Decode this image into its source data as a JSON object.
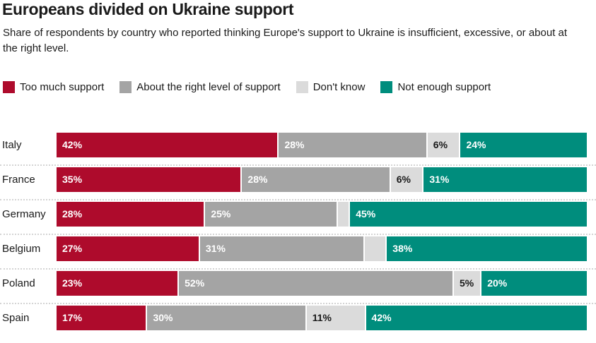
{
  "header": {
    "title": "Europeans divided on Ukraine support",
    "subtitle": "Share of respondents by country who reported thinking Europe's support to Ukraine is insufficient, excessive, or about at the right level."
  },
  "colors": {
    "too_much": "#AE0B2C",
    "right_level": "#A4A4A4",
    "dont_know": "#DBDBDB",
    "not_enough": "#008D7D",
    "label_on_dark": "#FFFFFF",
    "label_on_light": "#1A1A1A",
    "separator": "#D4D4D4"
  },
  "legend": [
    {
      "label": "Too much support",
      "color": "#AE0B2C"
    },
    {
      "label": "About the right level of support",
      "color": "#A4A4A4"
    },
    {
      "label": "Don't know",
      "color": "#DBDBDB"
    },
    {
      "label": "Not enough support",
      "color": "#008D7D"
    }
  ],
  "chart_data": {
    "type": "bar",
    "orientation": "horizontal-stacked",
    "title": "Europeans divided on Ukraine support",
    "xlabel": "",
    "ylabel": "",
    "xlim": [
      0,
      100
    ],
    "value_unit": "%",
    "grid": false,
    "legend_position": "top",
    "categories": [
      "Italy",
      "France",
      "Germany",
      "Belgium",
      "Poland",
      "Spain"
    ],
    "series": [
      {
        "name": "Too much support",
        "color": "#AE0B2C",
        "text_color": "#FFFFFF",
        "values": [
          42,
          35,
          28,
          27,
          23,
          17
        ],
        "labels": [
          "42%",
          "35%",
          "28%",
          "27%",
          "23%",
          "17%"
        ]
      },
      {
        "name": "About the right level of support",
        "color": "#A4A4A4",
        "text_color": "#FFFFFF",
        "values": [
          28,
          28,
          25,
          31,
          52,
          30
        ],
        "labels": [
          "28%",
          "28%",
          "25%",
          "31%",
          "52%",
          "30%"
        ]
      },
      {
        "name": "Don't know",
        "color": "#DBDBDB",
        "text_color": "#1A1A1A",
        "values": [
          6,
          6,
          2,
          4,
          5,
          11
        ],
        "labels": [
          "6%",
          "6%",
          "",
          "",
          "5%",
          "11%"
        ]
      },
      {
        "name": "Not enough support",
        "color": "#008D7D",
        "text_color": "#FFFFFF",
        "values": [
          24,
          31,
          45,
          38,
          20,
          42
        ],
        "labels": [
          "24%",
          "31%",
          "45%",
          "38%",
          "20%",
          "42%"
        ]
      }
    ]
  }
}
